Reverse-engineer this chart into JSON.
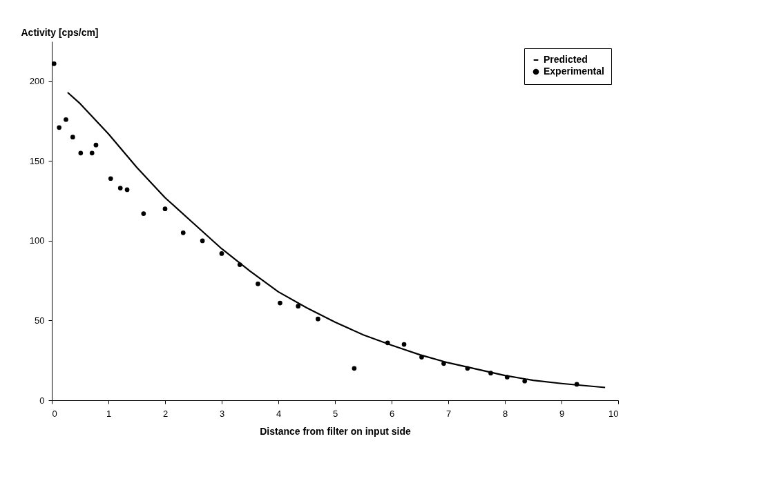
{
  "chart_data": {
    "type": "scatter",
    "xlabel": "Distance from filter on input side",
    "ylabel": "Activity [cps/cm]",
    "xlim": [
      0,
      10
    ],
    "xticks": [
      0,
      1,
      2,
      3,
      4,
      5,
      6,
      7,
      8,
      9,
      10
    ],
    "ylim": [
      0,
      225
    ],
    "yticks": [
      0,
      50,
      100,
      150,
      200
    ],
    "grid": false,
    "legend": "top right",
    "series": [
      {
        "name": "Predicted",
        "type": "line",
        "color": "#000000",
        "line_style": "solid",
        "marker": "none",
        "x": [
          0.28,
          0.5,
          1,
          1.5,
          2,
          2.5,
          3,
          3.5,
          4,
          4.5,
          5,
          5.5,
          6,
          6.5,
          7,
          7.5,
          8,
          8.5,
          9,
          9.77
        ],
        "values": [
          193,
          186,
          167,
          146,
          127,
          111,
          95,
          81,
          68,
          58,
          49,
          41,
          34.5,
          28.5,
          23.5,
          19.5,
          15.5,
          12.5,
          10.5,
          8
        ]
      },
      {
        "name": "Experimental",
        "type": "scatter",
        "color": "#000000",
        "marker": "circle",
        "x": [
          0.04,
          0.13,
          0.25,
          0.37,
          0.51,
          0.71,
          0.78,
          1.04,
          1.21,
          1.33,
          1.62,
          2.0,
          2.32,
          2.66,
          3.0,
          3.32,
          3.64,
          4.03,
          4.35,
          4.7,
          5.34,
          5.93,
          6.22,
          6.53,
          6.92,
          7.34,
          7.75,
          8.04,
          8.35,
          9.27
        ],
        "values": [
          211,
          171,
          176,
          165,
          155,
          155,
          160,
          139,
          133,
          132,
          117,
          120,
          105,
          100,
          92,
          85,
          73,
          61,
          59,
          51,
          20,
          36,
          35,
          27,
          23,
          20,
          17,
          14.5,
          12,
          10
        ]
      }
    ]
  }
}
